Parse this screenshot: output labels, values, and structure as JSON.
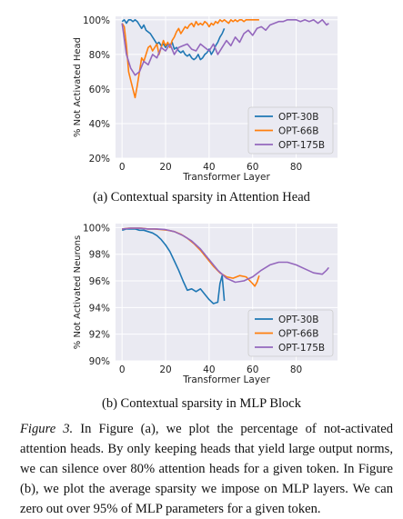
{
  "figure": {
    "caption_label": "Figure 3.",
    "caption_text": "In Figure (a), we plot the percentage of not-activated attention heads. By only keeping heads that yield large output norms, we can silence over 80% attention heads for a given token. In Figure (b), we plot the average sparsity we impose on MLP layers. We can zero out over 95% of MLP parameters for a given token."
  },
  "colors": {
    "opt30b": "#1f77b4",
    "opt66b": "#ff7f0e",
    "opt175b": "#9467bd",
    "axes_bg": "#eaeaf2",
    "grid": "#ffffff"
  },
  "chart_data": [
    {
      "type": "line",
      "subcaption": "(a) Contextual sparsity in Attention Head",
      "xlabel": "Transformer Layer",
      "ylabel": "% Not Activated Head",
      "xlim": [
        -3,
        99
      ],
      "ylim": [
        20,
        102
      ],
      "xticks": [
        0,
        20,
        40,
        60,
        80
      ],
      "yticks": [
        20,
        40,
        60,
        80,
        100
      ],
      "ytick_labels": [
        "20%",
        "40%",
        "60%",
        "80%",
        "100%"
      ],
      "grid": true,
      "legend": "bottom-right",
      "series": [
        {
          "name": "OPT-30B",
          "x": [
            0,
            1,
            2,
            3,
            4,
            5,
            6,
            7,
            8,
            9,
            10,
            11,
            12,
            13,
            14,
            15,
            16,
            17,
            18,
            19,
            20,
            21,
            22,
            23,
            24,
            25,
            26,
            27,
            28,
            29,
            30,
            31,
            32,
            33,
            34,
            35,
            36,
            37,
            38,
            39,
            40,
            41,
            42,
            43,
            44,
            45,
            46,
            47
          ],
          "values": [
            99,
            100,
            98,
            100,
            100,
            99,
            100,
            99,
            97,
            95,
            97,
            94,
            93,
            92,
            90,
            88,
            86,
            87,
            85,
            86,
            84,
            86,
            85,
            87,
            83,
            84,
            82,
            81,
            82,
            80,
            79,
            80,
            78,
            77,
            78,
            80,
            77,
            78,
            80,
            81,
            83,
            80,
            82,
            85,
            87,
            90,
            92,
            95
          ]
        },
        {
          "name": "OPT-66B",
          "x": [
            0,
            1,
            2,
            3,
            4,
            5,
            6,
            7,
            8,
            9,
            10,
            11,
            12,
            13,
            14,
            15,
            16,
            17,
            18,
            19,
            20,
            21,
            22,
            23,
            24,
            25,
            26,
            27,
            28,
            29,
            30,
            31,
            32,
            33,
            34,
            35,
            36,
            37,
            38,
            39,
            40,
            41,
            42,
            43,
            44,
            45,
            46,
            47,
            48,
            49,
            50,
            51,
            52,
            53,
            54,
            55,
            56,
            57,
            58,
            59,
            60,
            61,
            62,
            63
          ],
          "values": [
            98,
            96,
            85,
            70,
            65,
            60,
            55,
            62,
            70,
            78,
            76,
            80,
            84,
            85,
            82,
            84,
            86,
            80,
            84,
            88,
            85,
            87,
            84,
            88,
            90,
            93,
            95,
            92,
            94,
            96,
            95,
            97,
            98,
            96,
            99,
            97,
            98,
            97,
            99,
            98,
            96,
            98,
            97,
            99,
            98,
            100,
            99,
            100,
            99,
            98,
            100,
            99,
            100,
            99,
            100,
            100,
            99,
            100,
            100,
            100,
            100,
            100,
            100,
            100
          ]
        },
        {
          "name": "OPT-175B",
          "x": [
            0,
            2,
            4,
            6,
            8,
            10,
            12,
            14,
            16,
            18,
            20,
            22,
            24,
            26,
            28,
            30,
            32,
            34,
            36,
            38,
            40,
            42,
            44,
            46,
            48,
            50,
            52,
            54,
            56,
            58,
            60,
            62,
            64,
            66,
            68,
            70,
            72,
            74,
            76,
            78,
            80,
            82,
            84,
            86,
            88,
            90,
            92,
            94,
            95
          ],
          "values": [
            98,
            80,
            72,
            68,
            70,
            76,
            74,
            80,
            78,
            84,
            82,
            86,
            80,
            84,
            85,
            86,
            83,
            82,
            86,
            84,
            82,
            86,
            80,
            84,
            88,
            85,
            90,
            87,
            92,
            94,
            91,
            95,
            96,
            94,
            97,
            98,
            99,
            99,
            100,
            100,
            100,
            99,
            100,
            99,
            100,
            98,
            100,
            97,
            98
          ]
        }
      ]
    },
    {
      "type": "line",
      "subcaption": "(b) Contextual sparsity in MLP Block",
      "xlabel": "Transformer Layer",
      "ylabel": "% Not Activated Neurons",
      "xlim": [
        -3,
        99
      ],
      "ylim": [
        90,
        100.3
      ],
      "xticks": [
        0,
        20,
        40,
        60,
        80
      ],
      "yticks": [
        90,
        92,
        94,
        96,
        98,
        100
      ],
      "ytick_labels": [
        "90%",
        "92%",
        "94%",
        "96%",
        "98%",
        "100%"
      ],
      "grid": true,
      "legend": "bottom-right",
      "series": [
        {
          "name": "OPT-30B",
          "x": [
            0,
            2,
            4,
            6,
            8,
            10,
            12,
            14,
            16,
            18,
            20,
            22,
            24,
            26,
            28,
            30,
            32,
            34,
            36,
            38,
            40,
            42,
            44,
            45,
            46,
            47
          ],
          "values": [
            99.8,
            99.9,
            99.9,
            99.9,
            99.8,
            99.8,
            99.7,
            99.6,
            99.4,
            99.1,
            98.7,
            98.2,
            97.5,
            96.8,
            96.0,
            95.3,
            95.4,
            95.2,
            95.4,
            95.0,
            94.6,
            94.3,
            94.4,
            95.8,
            96.4,
            94.5
          ]
        },
        {
          "name": "OPT-66B",
          "x": [
            0,
            3,
            6,
            9,
            12,
            15,
            18,
            21,
            24,
            27,
            30,
            33,
            36,
            39,
            42,
            45,
            48,
            51,
            54,
            57,
            60,
            61,
            62,
            63
          ],
          "values": [
            99.9,
            99.95,
            99.95,
            99.95,
            99.9,
            99.9,
            99.85,
            99.8,
            99.7,
            99.5,
            99.2,
            98.8,
            98.3,
            97.7,
            97.1,
            96.6,
            96.3,
            96.2,
            96.4,
            96.3,
            95.8,
            95.6,
            95.9,
            96.4
          ]
        },
        {
          "name": "OPT-175B",
          "x": [
            0,
            4,
            8,
            12,
            16,
            20,
            24,
            28,
            32,
            36,
            40,
            44,
            48,
            52,
            56,
            60,
            64,
            68,
            72,
            76,
            80,
            84,
            88,
            92,
            94,
            95
          ],
          "values": [
            99.9,
            99.95,
            99.95,
            99.9,
            99.9,
            99.85,
            99.7,
            99.4,
            99.0,
            98.4,
            97.6,
            96.8,
            96.2,
            95.9,
            96.0,
            96.3,
            96.8,
            97.2,
            97.4,
            97.4,
            97.2,
            96.9,
            96.6,
            96.5,
            96.8,
            97.0
          ]
        }
      ]
    }
  ]
}
